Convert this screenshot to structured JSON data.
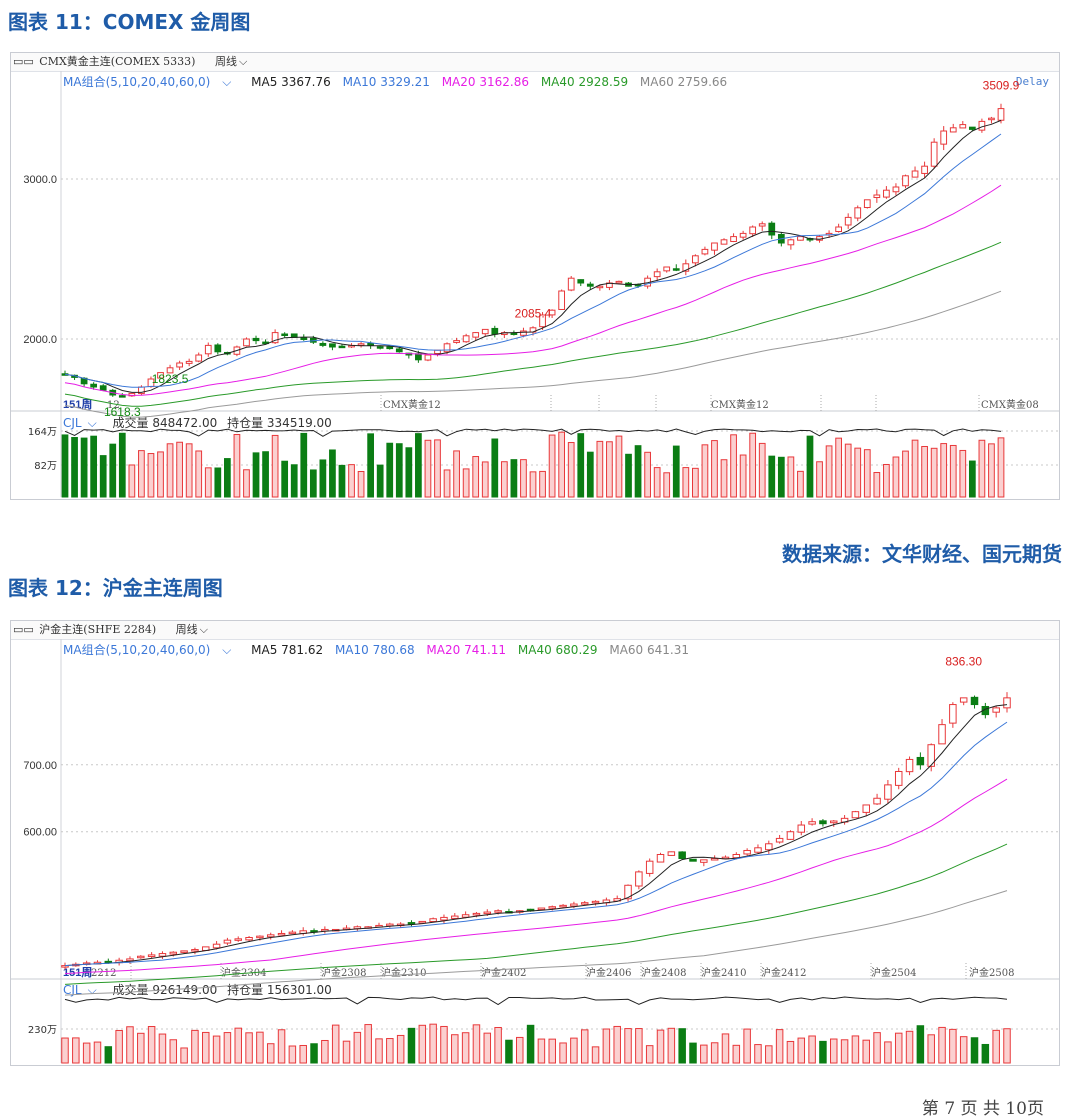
{
  "fig1": {
    "title": "图表 11：COMEX 金周图",
    "toolbar_symbol": "CMX黄金主连(COMEX 5333)",
    "toolbar_period": "周线",
    "ma_group": "MA组合(5,10,20,40,60,0)",
    "ma5": "MA5 3367.76",
    "ma10": "MA10 3329.21",
    "ma20": "MA20 3162.86",
    "ma40": "MA40 2928.59",
    "ma60": "MA60 2759.66",
    "delay": "Delay",
    "vol_label": "CJL",
    "vol_value": "成交量 848472.00",
    "oi_value": "持仓量 334519.00",
    "vol_ticks": [
      "164万",
      "82万"
    ],
    "period_tag": "151周",
    "contract_labels": [
      "12",
      "CMX黄金12",
      "CMX黄金12",
      "CMX黄金08"
    ]
  },
  "fig2": {
    "title": "图表 12：沪金主连周图",
    "toolbar_symbol": "沪金主连(SHFE 2284)",
    "toolbar_period": "周线",
    "ma_group": "MA组合(5,10,20,40,60,0)",
    "ma5": "MA5 781.62",
    "ma10": "MA10 780.68",
    "ma20": "MA20 741.11",
    "ma40": "MA40 680.29",
    "ma60": "MA60 641.31",
    "vol_label": "CJL",
    "vol_value": "成交量 926149.00",
    "oi_value": "持仓量 156301.00",
    "vol_ticks": [
      "230万"
    ],
    "period_tag": "151周",
    "contract_labels": [
      "2212",
      "沪金2304",
      "沪金2308",
      "沪金2310",
      "沪金2402",
      "沪金2406",
      "沪金2408",
      "沪金2410",
      "沪金2412",
      "沪金2504",
      "沪金2508"
    ]
  },
  "source": "数据来源：文华财经、国元期货",
  "footer": "第 7 页 共 10页",
  "colors": {
    "up": "#e8383a",
    "down": "#0b7d14",
    "ma5": "#222222",
    "ma10": "#3c78d8",
    "ma20": "#e61ee6",
    "ma40": "#2a9a2a",
    "ma60": "#9a9a9a",
    "title": "#1f5ca8"
  },
  "chart_data": [
    {
      "type": "candlestick",
      "title": "图表 11：COMEX 金周图",
      "yticks": [
        2000.0,
        3000.0
      ],
      "ytick_labels": [
        "2000.0",
        "3000.0"
      ],
      "ylim": [
        1550,
        3600
      ],
      "annotations": [
        {
          "label": "3509.9",
          "value": 3509.9,
          "kind": "high"
        },
        {
          "label": "2085.4",
          "value": 2085.4,
          "kind": "high"
        },
        {
          "label": "1823.5",
          "value": 1823.5,
          "kind": "low"
        },
        {
          "label": "1618.3",
          "value": 1618.3,
          "kind": "low"
        }
      ],
      "close_path": [
        1780,
        1760,
        1720,
        1700,
        1680,
        1650,
        1640,
        1660,
        1700,
        1750,
        1790,
        1820,
        1850,
        1860,
        1900,
        1960,
        1920,
        1910,
        1950,
        2000,
        1990,
        1980,
        2040,
        2030,
        2010,
        2000,
        1980,
        1960,
        1950,
        1950,
        1960,
        1970,
        1960,
        1950,
        1940,
        1920,
        1900,
        1870,
        1900,
        1930,
        1970,
        1990,
        2020,
        2040,
        2060,
        2030,
        2040,
        2030,
        2050,
        2070,
        2150,
        2180,
        2300,
        2380,
        2350,
        2330,
        2330,
        2350,
        2360,
        2330,
        2340,
        2380,
        2420,
        2450,
        2430,
        2470,
        2520,
        2560,
        2600,
        2620,
        2640,
        2660,
        2700,
        2720,
        2650,
        2600,
        2620,
        2640,
        2620,
        2640,
        2660,
        2700,
        2760,
        2820,
        2870,
        2900,
        2930,
        2950,
        3020,
        3050,
        3080,
        3230,
        3300,
        3320,
        3340,
        3310,
        3360,
        3380,
        3440
      ]
    },
    {
      "type": "candlestick",
      "title": "图表 12：沪金主连周图",
      "yticks": [
        600.0,
        700.0
      ],
      "ytick_labels": [
        "600.00",
        "700.00"
      ],
      "ylim": [
        380,
        870
      ],
      "annotations": [
        {
          "label": "836.30",
          "value": 836.3,
          "kind": "high"
        }
      ],
      "close_path": [
        400,
        402,
        404,
        405,
        406,
        408,
        410,
        414,
        416,
        418,
        420,
        422,
        424,
        428,
        432,
        438,
        440,
        442,
        444,
        446,
        448,
        450,
        452,
        452,
        454,
        454,
        456,
        458,
        458,
        460,
        462,
        462,
        464,
        466,
        470,
        472,
        474,
        476,
        478,
        480,
        482,
        480,
        482,
        484,
        486,
        488,
        490,
        492,
        494,
        496,
        498,
        500,
        520,
        540,
        556,
        566,
        570,
        560,
        556,
        558,
        560,
        562,
        566,
        572,
        576,
        582,
        590,
        600,
        610,
        615,
        612,
        616,
        620,
        630,
        640,
        650,
        670,
        690,
        708,
        700,
        730,
        760,
        790,
        800,
        790,
        775,
        785,
        800
      ]
    }
  ]
}
